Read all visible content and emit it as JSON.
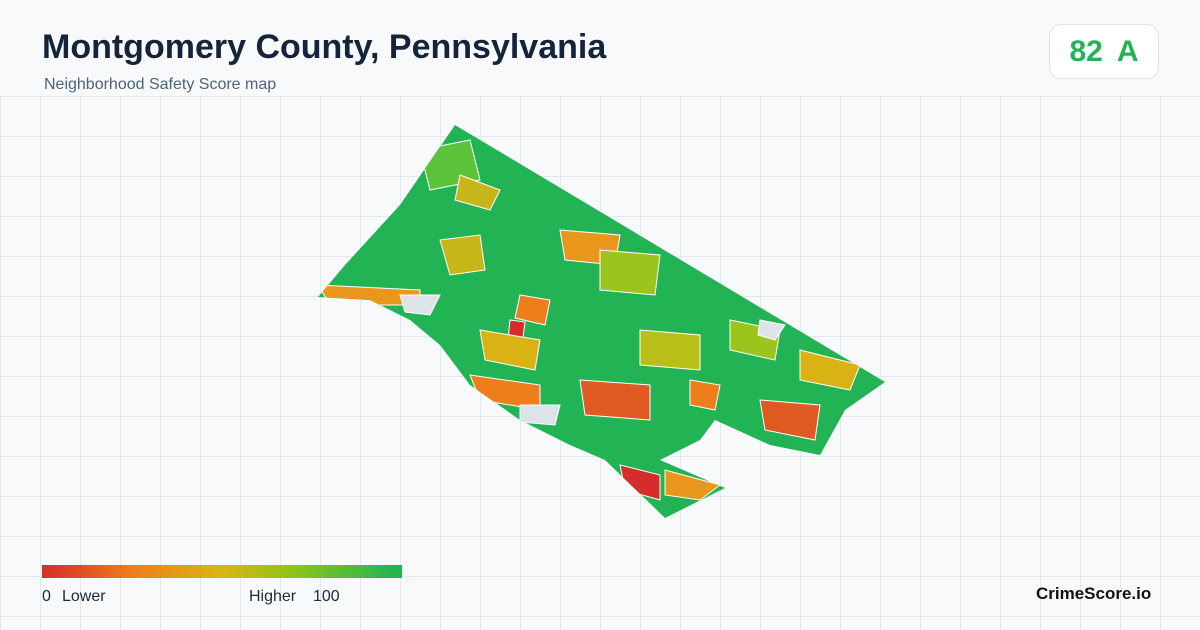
{
  "header": {
    "title": "Montgomery County, Pennsylvania",
    "subtitle": "Neighborhood Safety Score map"
  },
  "score": {
    "value": 82,
    "grade": "A"
  },
  "legend": {
    "min": 0,
    "min_label": "Lower",
    "max_label": "Higher",
    "max": 100
  },
  "brand": "CrimeScore.io"
}
